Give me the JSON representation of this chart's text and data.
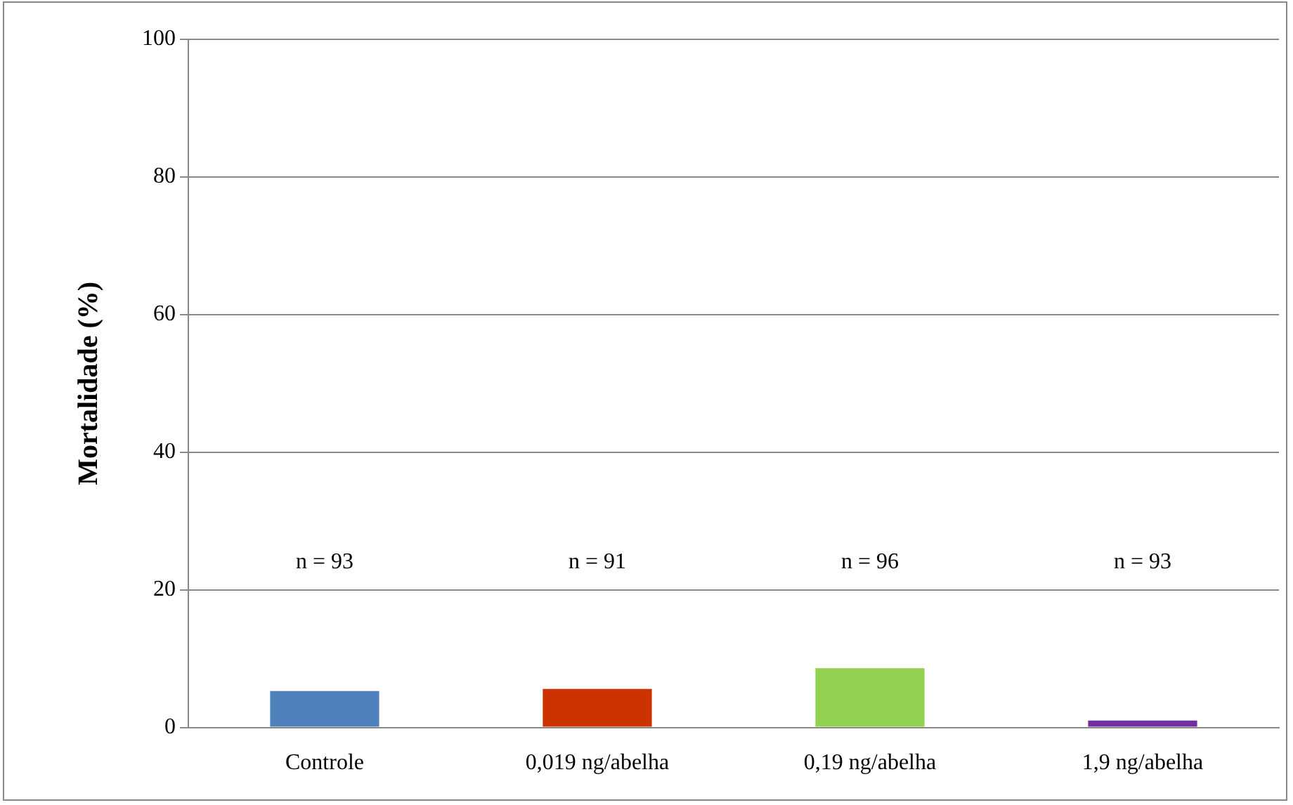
{
  "chart_data": {
    "type": "bar",
    "ylabel": "Mortalidade (%)",
    "categories": [
      "Controle",
      "0,019 ng/abelha",
      "0,19 ng/abelha",
      "1,9 ng/abelha"
    ],
    "values": [
      5.3,
      5.6,
      8.6,
      1.0
    ],
    "colors": [
      "#4f81bd",
      "#cc3300",
      "#92d050",
      "#7030a0"
    ],
    "ylim": [
      0,
      100
    ],
    "yticks": [
      0,
      20,
      40,
      60,
      80,
      100
    ],
    "grid": "y",
    "legend": false,
    "annotations": [
      "n = 93",
      "n = 91",
      "n = 96",
      "n = 93"
    ]
  }
}
